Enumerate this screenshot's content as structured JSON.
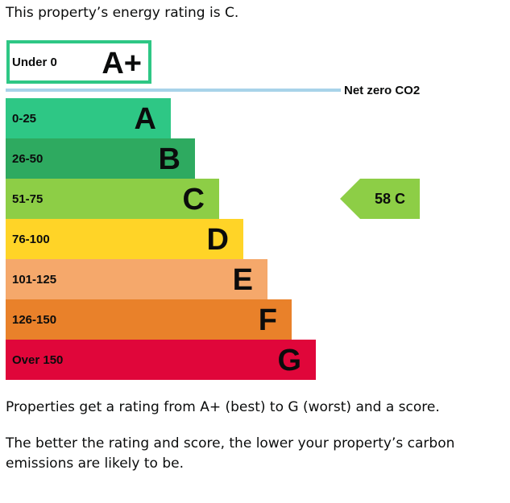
{
  "intro": "This property’s energy rating is C.",
  "paragraphs": [
    "Properties get a rating from A+ (best) to G (worst) and a score.",
    "The better the rating and score, the lower your property’s carbon emissions are likely to be."
  ],
  "chart_data": {
    "type": "bar",
    "orientation": "horizontal",
    "top_band": {
      "range": "Under 0",
      "letter": "A+",
      "color": "#2ec785"
    },
    "net_zero_label": "Net zero CO2",
    "net_zero_line_color": "#a8d3e9",
    "bands": [
      {
        "range": "0-25",
        "letter": "A",
        "color": "#2ec785"
      },
      {
        "range": "26-50",
        "letter": "B",
        "color": "#2eaa60"
      },
      {
        "range": "51-75",
        "letter": "C",
        "color": "#8dce46"
      },
      {
        "range": "76-100",
        "letter": "D",
        "color": "#ffd427"
      },
      {
        "range": "101-125",
        "letter": "E",
        "color": "#f5a86b"
      },
      {
        "range": "126-150",
        "letter": "F",
        "color": "#e9812a"
      },
      {
        "range": "Over 150",
        "letter": "G",
        "color": "#e0063a"
      }
    ],
    "current": {
      "score": 58,
      "letter": "C",
      "band_index": 2,
      "color": "#8dce46"
    }
  }
}
